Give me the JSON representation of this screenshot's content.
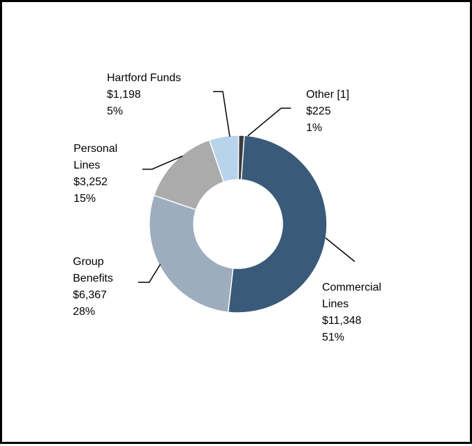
{
  "chart_data": {
    "type": "pie",
    "variant": "donut",
    "legend": "none",
    "categories": [
      "Commercial Lines",
      "Group Benefits",
      "Personal Lines",
      "Hartford Funds",
      "Other [1]"
    ],
    "values": [
      11348,
      6367,
      3252,
      1198,
      225
    ],
    "percent": [
      51,
      28,
      15,
      5,
      1
    ],
    "colors": [
      "#3a5a7a",
      "#9dadbe",
      "#ababab",
      "#b8d3ec",
      "#3c3c3c"
    ],
    "labels": [
      {
        "name_lines": [
          "Commercial",
          "Lines"
        ],
        "value": "$11,348",
        "percent": "51%"
      },
      {
        "name_lines": [
          "Group",
          "Benefits"
        ],
        "value": "$6,367",
        "percent": "28%"
      },
      {
        "name_lines": [
          "Personal",
          "Lines"
        ],
        "value": "$3,252",
        "percent": "15%"
      },
      {
        "name_lines": [
          "Hartford Funds"
        ],
        "value": "$1,198",
        "percent": "5%"
      },
      {
        "name_lines": [
          "Other [1]"
        ],
        "value": "$225",
        "percent": "1%"
      }
    ]
  }
}
